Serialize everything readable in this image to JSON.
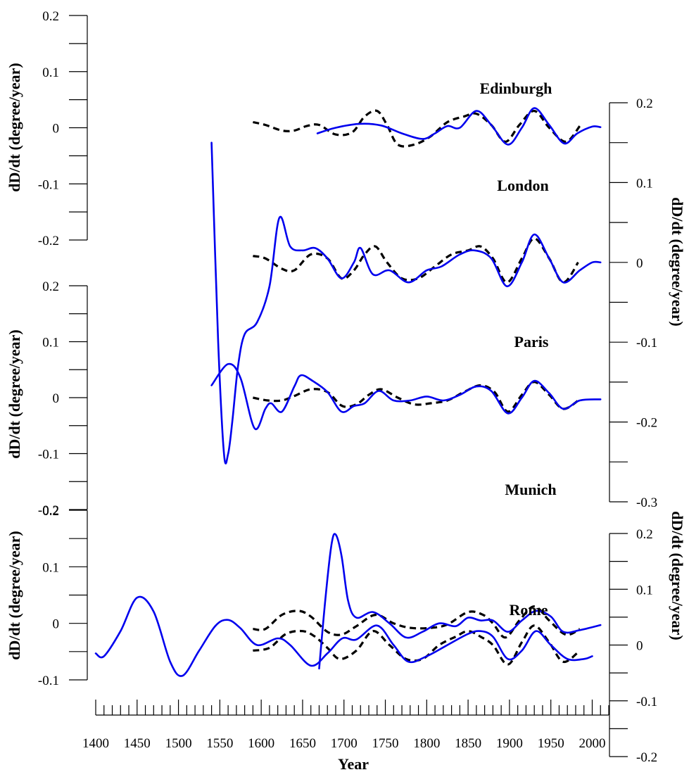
{
  "chart_data": {
    "type": "line",
    "xlabel": "Year",
    "x_ticks": [
      "1400",
      "1450",
      "1500",
      "1550",
      "1600",
      "1650",
      "1700",
      "1750",
      "1800",
      "1850",
      "1900",
      "1950",
      "2000"
    ],
    "xlim": [
      1400,
      2020
    ],
    "axes": [
      {
        "side": "left",
        "ylabel": "dD/dt (degree/year)",
        "ylim": [
          -0.2,
          0.2
        ],
        "ticks": [
          "0.2",
          "0.1",
          "0",
          "-0.1",
          "-0.2"
        ]
      },
      {
        "side": "right",
        "ylabel": "dD/dt (degree/year)",
        "ylim": [
          -0.3,
          0.2
        ],
        "ticks": [
          "0.2",
          "0.1",
          "0",
          "-0.1",
          "-0.2",
          "-0.3"
        ]
      },
      {
        "side": "left",
        "ylabel": "dD/dt (degree/year)",
        "ylim": [
          -0.2,
          0.2
        ],
        "ticks": [
          "0.2",
          "0.1",
          "0",
          "-0.1",
          "-0.2"
        ]
      },
      {
        "side": "right",
        "ylabel": "dD/dt (degree/year)",
        "ylim": [
          -0.2,
          0.2
        ],
        "ticks": [
          "0.2",
          "0.1",
          "0",
          "-0.1",
          "-0.2"
        ]
      },
      {
        "side": "left",
        "ylabel": "dD/dt (degree/year)",
        "ylim": [
          -0.1,
          0.2
        ],
        "ticks": [
          "0.2",
          "0.1",
          "0",
          "-0.1"
        ]
      }
    ],
    "panels": [
      {
        "label": "Edinburgh",
        "axis": 0,
        "blue": {
          "x": [
            1668,
            1690,
            1720,
            1745,
            1770,
            1795,
            1810,
            1825,
            1840,
            1860,
            1878,
            1898,
            1915,
            1930,
            1948,
            1966,
            1982,
            2000,
            2010
          ],
          "y": [
            -0.01,
            0.0,
            0.007,
            0.004,
            -0.01,
            -0.02,
            -0.01,
            0.003,
            0.0,
            0.03,
            0.005,
            -0.03,
            0.0,
            0.035,
            0.005,
            -0.028,
            -0.01,
            0.002,
            0.001
          ]
        },
        "black": {
          "x": [
            1590,
            1605,
            1625,
            1640,
            1655,
            1670,
            1690,
            1710,
            1725,
            1740,
            1752,
            1765,
            1785,
            1805,
            1825,
            1845,
            1860,
            1878,
            1895,
            1912,
            1930,
            1948,
            1968,
            1985
          ],
          "y": [
            0.01,
            0.005,
            -0.005,
            -0.005,
            0.003,
            0.005,
            -0.012,
            -0.008,
            0.02,
            0.03,
            0.005,
            -0.03,
            -0.03,
            -0.015,
            0.01,
            0.02,
            0.025,
            0.005,
            -0.025,
            0.005,
            0.03,
            0.0,
            -0.025,
            0.003
          ]
        }
      },
      {
        "label": "London",
        "axis": 1,
        "blue": {
          "x": [
            1540,
            1548,
            1555,
            1560,
            1565,
            1572,
            1580,
            1595,
            1610,
            1622,
            1635,
            1650,
            1665,
            1680,
            1697,
            1712,
            1720,
            1735,
            1755,
            1778,
            1800,
            1818,
            1840,
            1858,
            1878,
            1897,
            1915,
            1930,
            1948,
            1965,
            1985,
            2000,
            2010
          ],
          "y": [
            0.15,
            -0.1,
            -0.24,
            -0.24,
            -0.2,
            -0.13,
            -0.09,
            -0.075,
            -0.03,
            0.056,
            0.02,
            0.015,
            0.018,
            0.005,
            -0.02,
            0.0,
            0.018,
            -0.015,
            -0.01,
            -0.025,
            -0.01,
            -0.005,
            0.01,
            0.015,
            0.005,
            -0.03,
            0.0,
            0.035,
            0.005,
            -0.025,
            -0.01,
            0.0,
            0.0
          ]
        },
        "black": {
          "x": [
            1590,
            1605,
            1625,
            1640,
            1660,
            1680,
            1697,
            1712,
            1725,
            1738,
            1752,
            1770,
            1790,
            1810,
            1830,
            1850,
            1865,
            1880,
            1897,
            1915,
            1930,
            1948,
            1965,
            1983
          ],
          "y": [
            0.008,
            0.005,
            -0.008,
            -0.01,
            0.01,
            0.005,
            -0.02,
            -0.01,
            0.01,
            0.02,
            0.0,
            -0.02,
            -0.02,
            -0.005,
            0.01,
            0.015,
            0.02,
            0.005,
            -0.025,
            0.005,
            0.03,
            0.005,
            -0.025,
            0.0
          ]
        }
      },
      {
        "label": "Paris",
        "axis": 2,
        "blue": {
          "x": [
            1540,
            1560,
            1575,
            1592,
            1605,
            1612,
            1625,
            1640,
            1648,
            1662,
            1680,
            1697,
            1712,
            1725,
            1742,
            1760,
            1780,
            1800,
            1820,
            1840,
            1860,
            1878,
            1898,
            1915,
            1930,
            1948,
            1965,
            1985,
            2010
          ],
          "y": [
            0.022,
            0.06,
            0.035,
            -0.055,
            -0.02,
            -0.01,
            -0.025,
            0.02,
            0.04,
            0.03,
            0.01,
            -0.025,
            -0.015,
            -0.01,
            0.012,
            -0.005,
            -0.005,
            0.002,
            -0.005,
            0.005,
            0.02,
            0.012,
            -0.028,
            0.0,
            0.03,
            0.008,
            -0.02,
            -0.005,
            -0.003
          ]
        },
        "black": {
          "x": [
            1590,
            1608,
            1625,
            1640,
            1660,
            1680,
            1698,
            1715,
            1730,
            1745,
            1765,
            1785,
            1805,
            1825,
            1845,
            1865,
            1882,
            1898,
            1915,
            1930,
            1948,
            1965,
            1985
          ],
          "y": [
            0.0,
            -0.005,
            -0.005,
            0.003,
            0.015,
            0.01,
            -0.015,
            -0.012,
            0.005,
            0.015,
            0.0,
            -0.012,
            -0.01,
            -0.005,
            0.01,
            0.022,
            0.01,
            -0.025,
            0.005,
            0.028,
            0.005,
            -0.02,
            -0.003
          ]
        }
      },
      {
        "label": "Munich",
        "axis": 3,
        "blue": {
          "x": [
            1400,
            1410,
            1430,
            1450,
            1470,
            1490,
            1505,
            1525,
            1545,
            1560,
            1575,
            1595,
            1620,
            1635,
            1660,
            1680,
            1698,
            1715,
            1740,
            1760,
            1778,
            1800,
            1825,
            1850,
            1865,
            1880,
            1898,
            1915,
            1932,
            1950,
            1970,
            1990,
            2000
          ],
          "y": [
            -0.015,
            -0.02,
            0.025,
            0.085,
            0.06,
            -0.03,
            -0.055,
            -0.01,
            0.035,
            0.045,
            0.03,
            0.0,
            0.012,
            0.0,
            -0.037,
            -0.015,
            0.012,
            0.01,
            0.035,
            0.0,
            -0.03,
            -0.02,
            0.0,
            0.02,
            0.025,
            0.015,
            -0.025,
            -0.01,
            0.025,
            0.0,
            -0.025,
            -0.025,
            -0.02
          ]
        },
        "black": {
          "x": [
            1590,
            1610,
            1630,
            1650,
            1665,
            1680,
            1695,
            1715,
            1735,
            1755,
            1775,
            1795,
            1815,
            1835,
            1850,
            1865,
            1880,
            1898,
            1915,
            1930,
            1948,
            1965,
            1985
          ],
          "y": [
            -0.01,
            -0.005,
            0.02,
            0.025,
            0.015,
            -0.005,
            -0.025,
            -0.01,
            0.025,
            0.0,
            -0.025,
            -0.025,
            0.0,
            0.015,
            0.025,
            0.015,
            0.0,
            -0.035,
            0.005,
            0.035,
            0.005,
            -0.03,
            -0.01
          ]
        }
      },
      {
        "label": "Rome",
        "axis": 4,
        "blue": {
          "x": [
            1670,
            1678,
            1685,
            1690,
            1697,
            1705,
            1715,
            1735,
            1755,
            1775,
            1795,
            1815,
            1835,
            1850,
            1865,
            1880,
            1898,
            1915,
            1932,
            1950,
            1965,
            1985,
            2010
          ],
          "y": [
            -0.08,
            0.05,
            0.14,
            0.157,
            0.12,
            0.04,
            0.01,
            0.02,
            0.0,
            -0.025,
            -0.015,
            0.0,
            -0.005,
            0.01,
            0.005,
            0.005,
            -0.015,
            0.005,
            0.022,
            0.012,
            -0.015,
            -0.012,
            -0.003
          ]
        },
        "black": {
          "x": [
            1590,
            1605,
            1625,
            1645,
            1660,
            1680,
            1697,
            1715,
            1738,
            1760,
            1780,
            1805,
            1825,
            1850,
            1868,
            1880,
            1895,
            1912,
            1930,
            1948,
            1968,
            1985
          ],
          "y": [
            -0.01,
            -0.01,
            0.015,
            0.022,
            0.012,
            -0.015,
            -0.02,
            -0.005,
            0.015,
            0.0,
            -0.008,
            -0.008,
            -0.002,
            0.02,
            0.015,
            0.0,
            -0.025,
            0.005,
            0.03,
            0.005,
            -0.02,
            -0.01
          ]
        }
      }
    ]
  }
}
